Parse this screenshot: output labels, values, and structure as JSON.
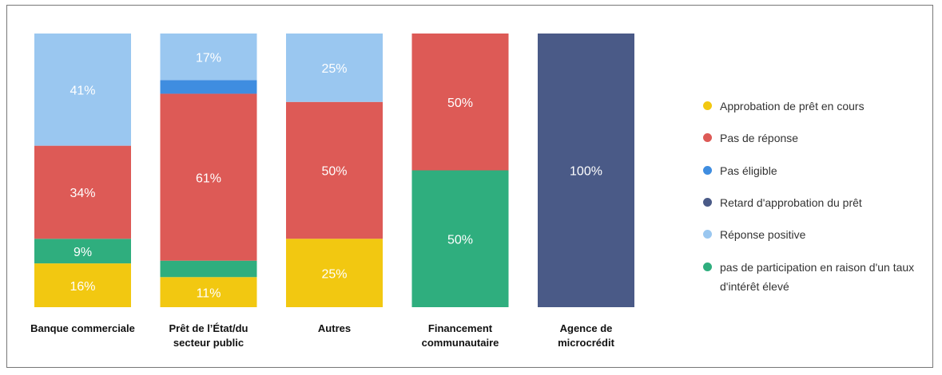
{
  "chart_data": {
    "type": "stacked_bar",
    "categories": [
      "Banque commerciale",
      "Prêt de l’État/du secteur public",
      "Autres",
      "Financement communautaire",
      "Agence de microcrédit"
    ],
    "ylim": [
      0,
      100
    ],
    "series": [
      {
        "name": "Approbation de prêt en cours",
        "color": "#f2c811",
        "values": [
          16,
          11,
          25,
          0,
          0
        ],
        "value_labels": [
          "16%",
          "11%",
          "25%",
          null,
          null
        ]
      },
      {
        "name": "Pas de réponse",
        "color": "#dd5a56",
        "values": [
          34,
          61,
          50,
          50,
          0
        ],
        "value_labels": [
          "34%",
          "61%",
          "50%",
          "50%",
          null
        ]
      },
      {
        "name": "Pas éligible",
        "color": "#3f8de0",
        "values": [
          0,
          5,
          0,
          0,
          0
        ],
        "value_labels": [
          null,
          null,
          null,
          null,
          null
        ]
      },
      {
        "name": "Retard d'approbation du prêt",
        "color": "#4a5a87",
        "values": [
          0,
          0,
          0,
          0,
          100
        ],
        "value_labels": [
          null,
          null,
          null,
          null,
          "100%"
        ]
      },
      {
        "name": "Réponse positive",
        "color": "#9ac7f0",
        "values": [
          41,
          17,
          25,
          0,
          0
        ],
        "value_labels": [
          "41%",
          "17%",
          "25%",
          null,
          null
        ]
      },
      {
        "name": "pas de participation en raison d'un taux d'intérêt élevé",
        "color": "#2fae7e",
        "values": [
          9,
          6,
          0,
          50,
          0
        ],
        "value_labels": [
          "9%",
          null,
          null,
          "50%",
          null
        ]
      }
    ]
  }
}
